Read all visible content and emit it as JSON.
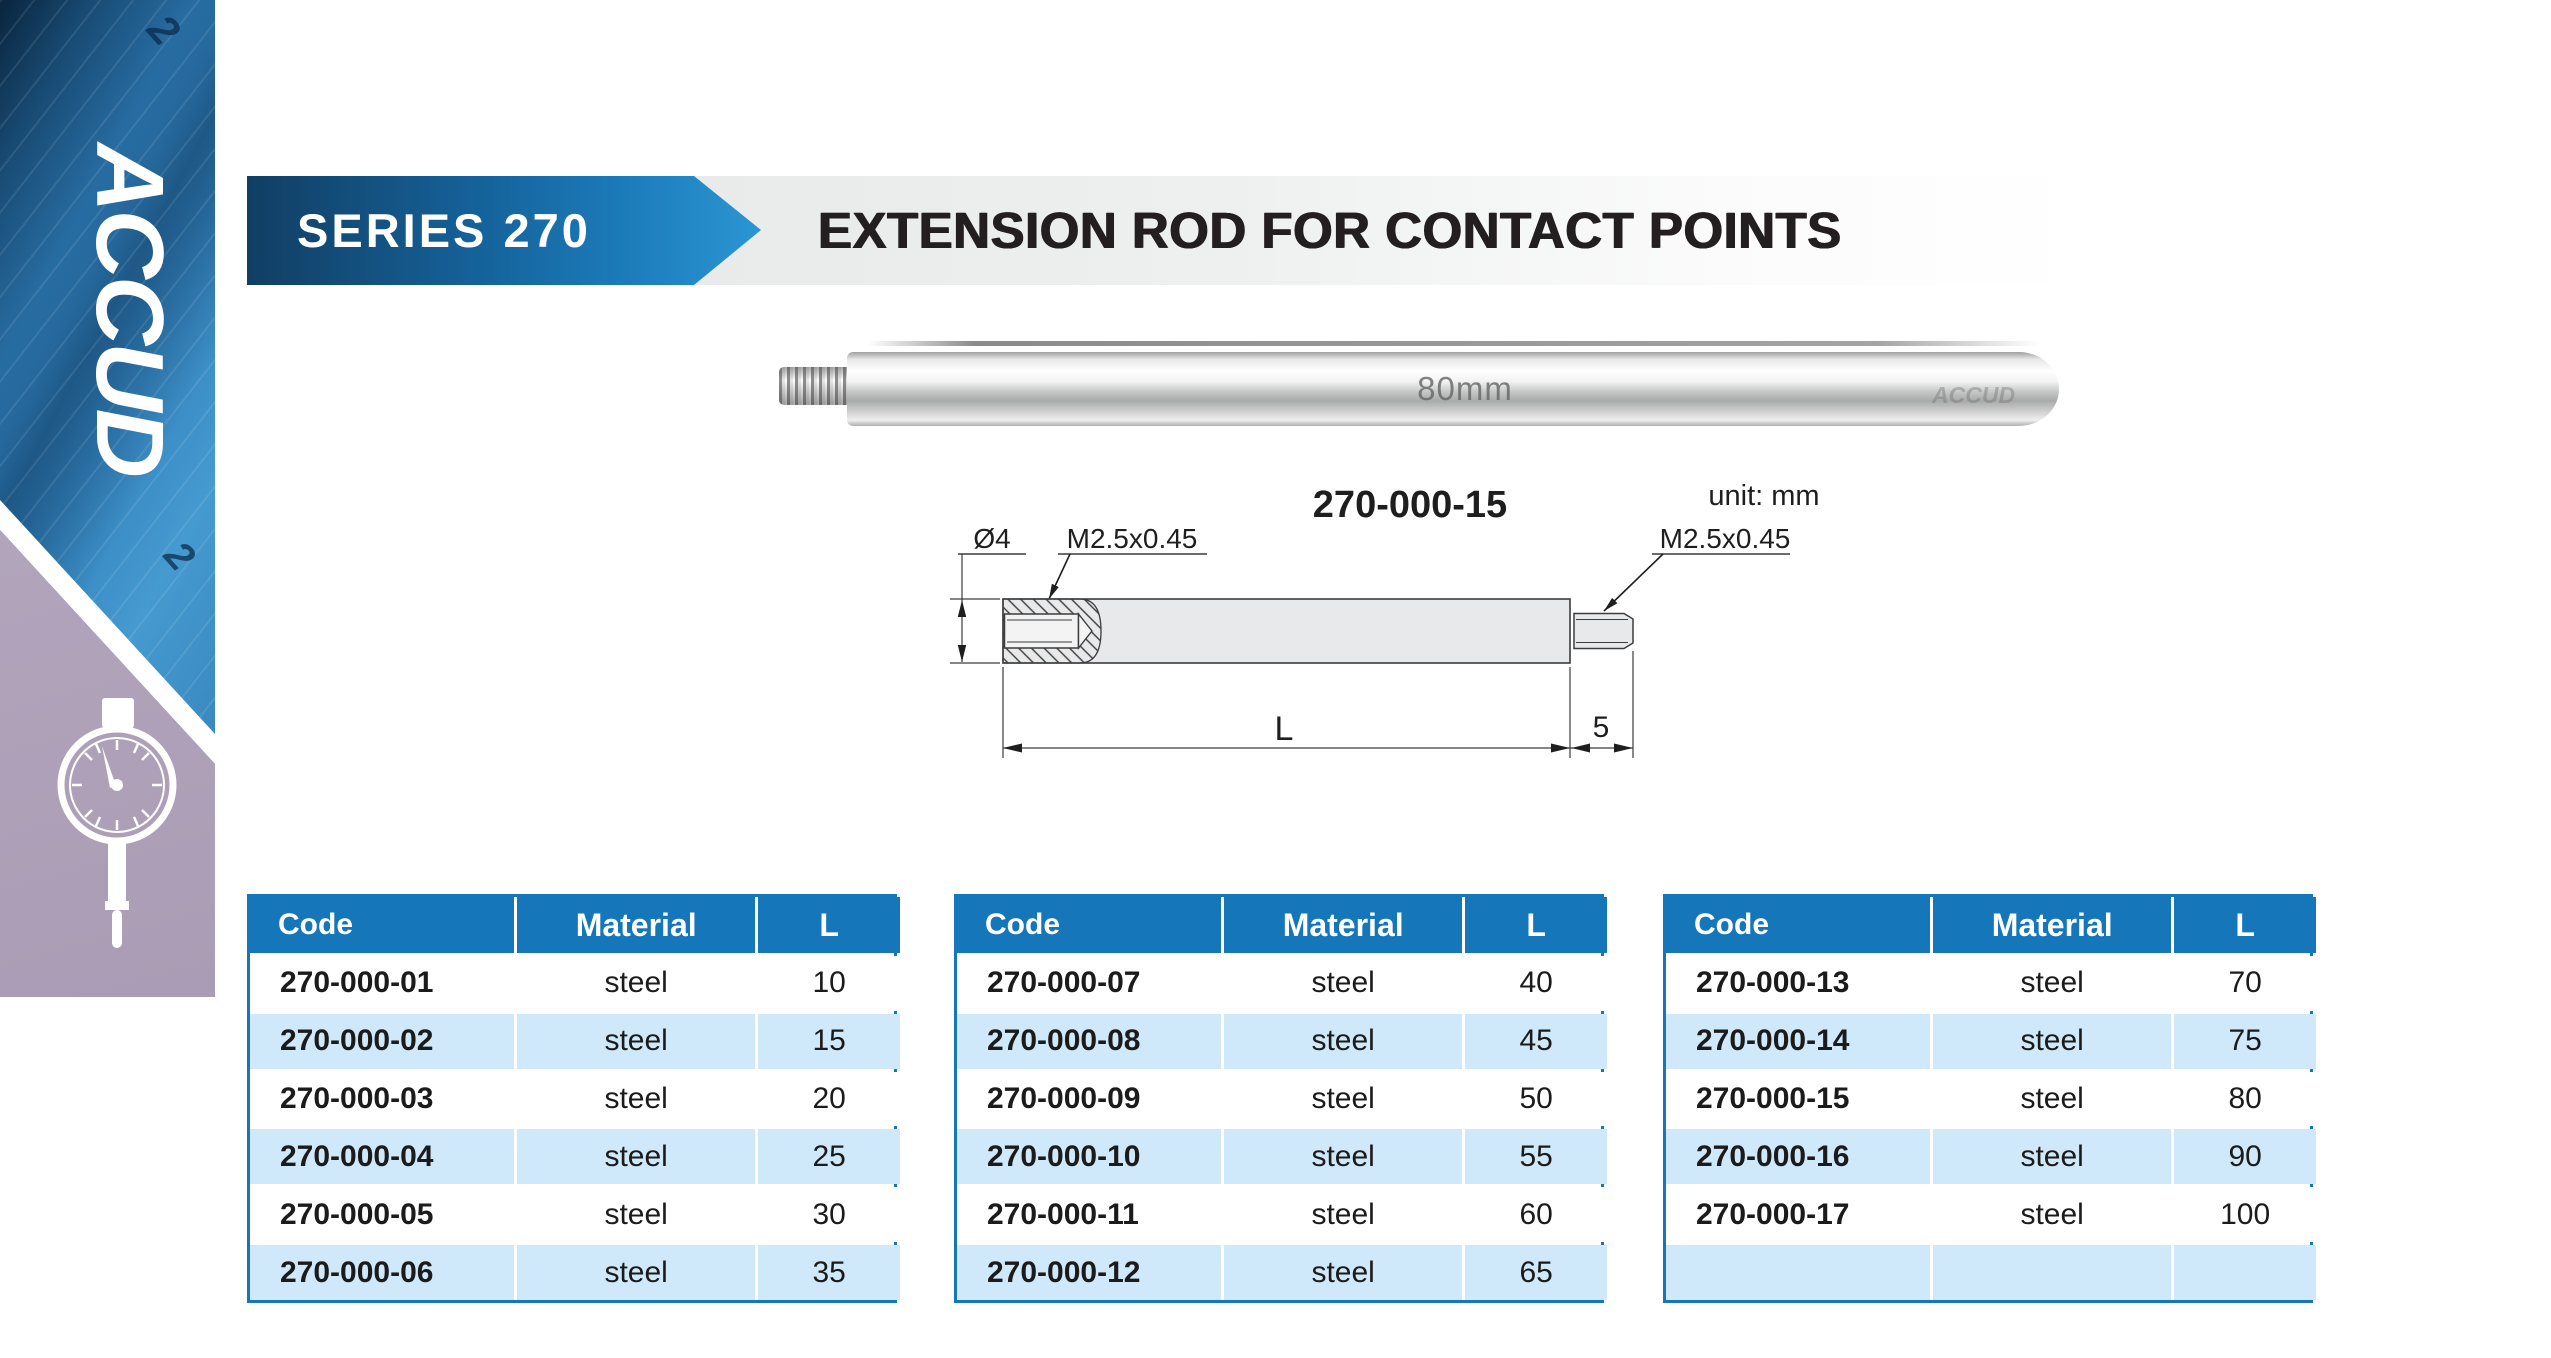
{
  "sidebar": {
    "logo_text": "ACCUD",
    "ruler_digits": [
      "2",
      "2"
    ]
  },
  "header": {
    "series_label": "SERIES 270",
    "title": "EXTENSION ROD FOR CONTACT POINTS"
  },
  "photo": {
    "engraving": "80mm",
    "brand_engraving": "ACCUD"
  },
  "drawing": {
    "model": "270-000-15",
    "unit_label": "unit: mm",
    "dia_label": "Ø4",
    "thread_label_left": "M2.5x0.45",
    "thread_label_right": "M2.5x0.45",
    "length_label": "L",
    "stud_length_label": "5"
  },
  "tables": {
    "headers": [
      "Code",
      "Material",
      "L"
    ],
    "groups": [
      {
        "rows": [
          [
            "270-000-01",
            "steel",
            "10"
          ],
          [
            "270-000-02",
            "steel",
            "15"
          ],
          [
            "270-000-03",
            "steel",
            "20"
          ],
          [
            "270-000-04",
            "steel",
            "25"
          ],
          [
            "270-000-05",
            "steel",
            "30"
          ],
          [
            "270-000-06",
            "steel",
            "35"
          ]
        ]
      },
      {
        "rows": [
          [
            "270-000-07",
            "steel",
            "40"
          ],
          [
            "270-000-08",
            "steel",
            "45"
          ],
          [
            "270-000-09",
            "steel",
            "50"
          ],
          [
            "270-000-10",
            "steel",
            "55"
          ],
          [
            "270-000-11",
            "steel",
            "60"
          ],
          [
            "270-000-12",
            "steel",
            "65"
          ]
        ]
      },
      {
        "rows": [
          [
            "270-000-13",
            "steel",
            "70"
          ],
          [
            "270-000-14",
            "steel",
            "75"
          ],
          [
            "270-000-15",
            "steel",
            "80"
          ],
          [
            "270-000-16",
            "steel",
            "90"
          ],
          [
            "270-000-17",
            "steel",
            "100"
          ],
          [
            "",
            "",
            ""
          ]
        ]
      }
    ]
  },
  "colors": {
    "accent_blue": "#1577ba",
    "row_alt_blue": "#cfe8fa",
    "banner_dark": "#113e63",
    "banner_light": "#2b96d3",
    "sidebar_purple": "#b2a5bc",
    "title_text": "#231e1f"
  }
}
